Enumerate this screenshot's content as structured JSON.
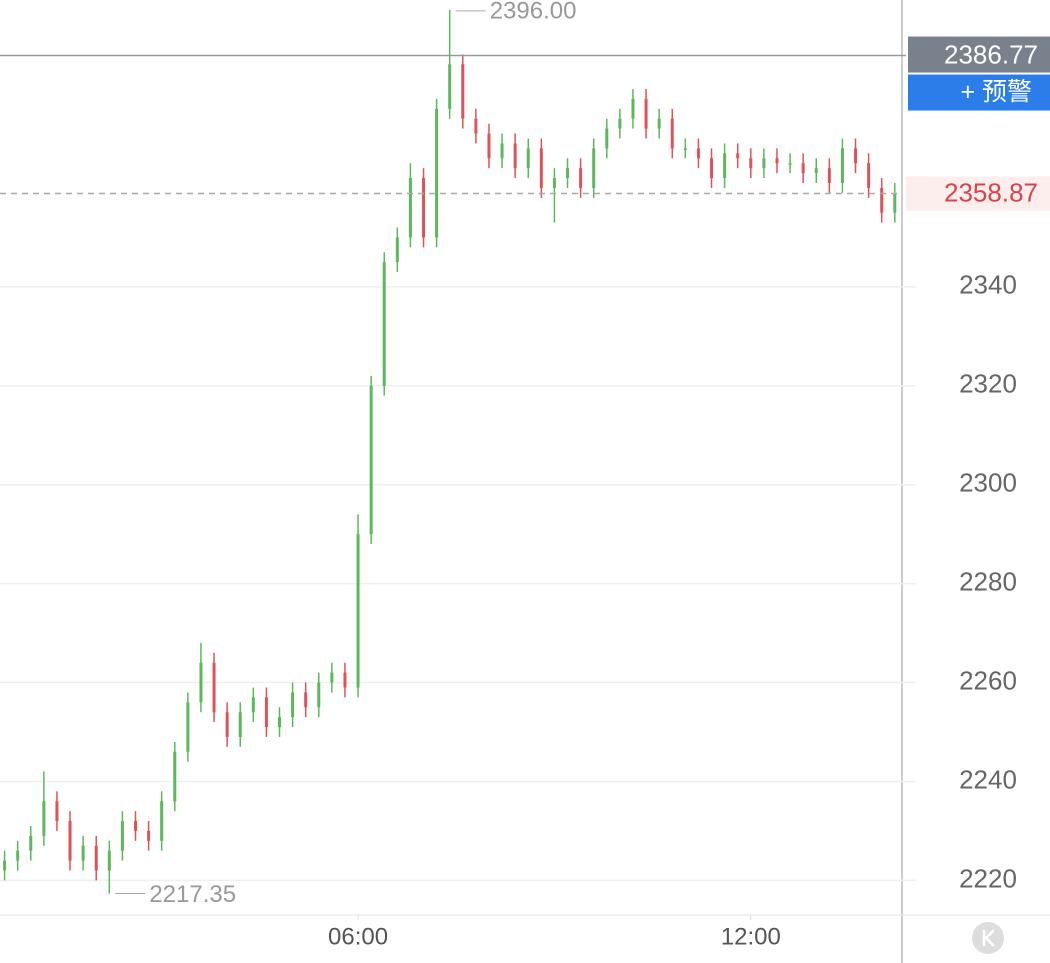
{
  "chart_data": {
    "type": "candlestick",
    "x": [
      0.6,
      0.8,
      1,
      1.2,
      1.4,
      1.6,
      1.8,
      2,
      2.2,
      2.4,
      2.6,
      2.8,
      3,
      3.2,
      3.4,
      3.6,
      3.8,
      4,
      4.2,
      4.4,
      4.6,
      4.8,
      5,
      5.2,
      5.4,
      5.6,
      5.8,
      6,
      6.2,
      6.4,
      6.6,
      6.8,
      7,
      7.2,
      7.4,
      7.6,
      7.8,
      8,
      8.2,
      8.4,
      8.6,
      8.8,
      9,
      9.2,
      9.4,
      9.6,
      9.8,
      10,
      10.2,
      10.4,
      10.6,
      10.8,
      11,
      11.2,
      11.4,
      11.6,
      11.8,
      12,
      12.2,
      12.4,
      12.6,
      12.8,
      13,
      13.2,
      13.4,
      13.6,
      13.8,
      14,
      14.2
    ],
    "open": [
      2222,
      2224,
      2226,
      2229,
      2236,
      2232,
      2224,
      2227,
      2222,
      2226,
      2232,
      2230,
      2228,
      2236,
      2246,
      2256,
      2264,
      2254,
      2249,
      2254,
      2257,
      2251,
      2253,
      2258,
      2255,
      2260,
      2262,
      2259,
      2290,
      2320,
      2345,
      2350,
      2362,
      2350,
      2376,
      2385,
      2374,
      2371,
      2366,
      2369,
      2364,
      2368,
      2360,
      2362,
      2364,
      2360,
      2368,
      2372,
      2374,
      2378,
      2372,
      2374,
      2368,
      2368,
      2366,
      2362,
      2367,
      2366,
      2364,
      2366,
      2365,
      2365,
      2363,
      2364,
      2361,
      2368,
      2365,
      2360,
      2355
    ],
    "high": [
      2226,
      2228,
      2231,
      2242,
      2238,
      2234,
      2229,
      2229,
      2228,
      2234,
      2234,
      2232,
      2238,
      2248,
      2258,
      2268,
      2266,
      2256,
      2256,
      2259,
      2259,
      2255,
      2260,
      2260,
      2262,
      2264,
      2264,
      2294,
      2322,
      2347,
      2352,
      2365,
      2364,
      2378,
      2396,
      2387,
      2376,
      2373,
      2371,
      2371,
      2370,
      2370,
      2364,
      2366,
      2366,
      2370,
      2374,
      2376,
      2380,
      2380,
      2376,
      2376,
      2370,
      2370,
      2368,
      2369,
      2369,
      2368,
      2368,
      2368,
      2367,
      2367,
      2366,
      2366,
      2370,
      2370,
      2367,
      2362,
      2361
    ],
    "low": [
      2220,
      2222,
      2224,
      2227,
      2230,
      2222,
      2222,
      2220,
      2217.35,
      2224,
      2228,
      2226,
      2226,
      2234,
      2244,
      2254,
      2252,
      2247,
      2247,
      2252,
      2249,
      2249,
      2251,
      2253,
      2253,
      2258,
      2257,
      2257,
      2288,
      2318,
      2343,
      2348,
      2348,
      2348,
      2374,
      2372,
      2369,
      2364,
      2364,
      2362,
      2362,
      2358,
      2353,
      2360,
      2358,
      2358,
      2366,
      2370,
      2372,
      2370,
      2370,
      2366,
      2366,
      2364,
      2360,
      2360,
      2364,
      2362,
      2362,
      2363,
      2363,
      2361,
      2361,
      2359,
      2359,
      2363,
      2358,
      2353,
      2353
    ],
    "close": [
      2224,
      2226,
      2229,
      2236,
      2232,
      2224,
      2227,
      2222,
      2226,
      2232,
      2230,
      2228,
      2236,
      2246,
      2256,
      2264,
      2254,
      2249,
      2254,
      2257,
      2251,
      2253,
      2258,
      2255,
      2260,
      2262,
      2259,
      2290,
      2320,
      2345,
      2350,
      2362,
      2350,
      2376,
      2385,
      2374,
      2371,
      2366,
      2369,
      2364,
      2368,
      2360,
      2362,
      2364,
      2360,
      2368,
      2372,
      2374,
      2378,
      2372,
      2374,
      2368,
      2368,
      2366,
      2362,
      2367,
      2366,
      2364,
      2366,
      2365,
      2365,
      2363,
      2364,
      2361,
      2368,
      2365,
      2360,
      2355,
      2358.87
    ],
    "up_color": "#5cb85c",
    "down_color": "#e0525a",
    "xlim": [
      0.53,
      14.31
    ],
    "xticks": [
      {
        "value": 6,
        "label": "06:00"
      },
      {
        "value": 12,
        "label": "12:00"
      }
    ],
    "ylim": [
      2213,
      2398
    ],
    "yticks": [
      2220,
      2240,
      2260,
      2280,
      2300,
      2320,
      2340
    ],
    "grid": true,
    "max_marker": {
      "value": 2396,
      "label": "2396.00"
    },
    "min_marker": {
      "value": 2217.35,
      "label": "2217.35"
    },
    "crosshair": {
      "value": 2386.77,
      "label": "2386.77"
    },
    "last_price": {
      "value": 2358.87,
      "label": "2358.87"
    },
    "alert_button": "+ 预警"
  }
}
